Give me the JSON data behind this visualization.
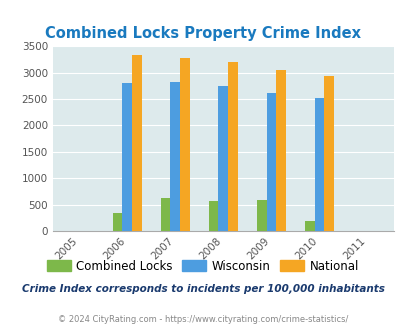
{
  "title": "Combined Locks Property Crime Index",
  "years": [
    2005,
    2006,
    2007,
    2008,
    2009,
    2010,
    2011
  ],
  "combined_locks": [
    null,
    350,
    620,
    575,
    590,
    195,
    null
  ],
  "wisconsin": [
    null,
    2800,
    2830,
    2750,
    2620,
    2510,
    null
  ],
  "national": [
    null,
    3340,
    3270,
    3210,
    3040,
    2940,
    null
  ],
  "ylim": [
    0,
    3500
  ],
  "yticks": [
    0,
    500,
    1000,
    1500,
    2000,
    2500,
    3000,
    3500
  ],
  "color_combined": "#7db84a",
  "color_wisconsin": "#4d9de0",
  "color_national": "#f5a623",
  "bg_color": "#ddeaec",
  "title_color": "#1a7abf",
  "subtitle": "Crime Index corresponds to incidents per 100,000 inhabitants",
  "footer": "© 2024 CityRating.com - https://www.cityrating.com/crime-statistics/",
  "subtitle_color": "#1a3a6e",
  "footer_color": "#888888",
  "legend_labels": [
    "Combined Locks",
    "Wisconsin",
    "National"
  ],
  "bar_width": 0.2
}
